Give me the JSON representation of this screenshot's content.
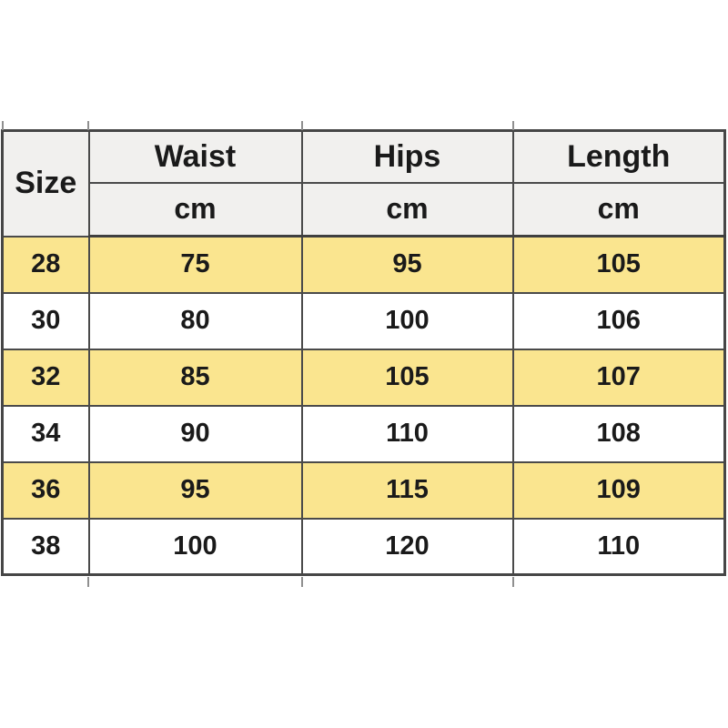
{
  "table": {
    "columns": [
      {
        "id": "size",
        "label": "Size",
        "unit": ""
      },
      {
        "id": "waist",
        "label": "Waist",
        "unit": "cm"
      },
      {
        "id": "hips",
        "label": "Hips",
        "unit": "cm"
      },
      {
        "id": "length",
        "label": "Length",
        "unit": "cm"
      }
    ],
    "rows": [
      {
        "size": "28",
        "waist": "75",
        "hips": "95",
        "length": "105",
        "highlighted": true
      },
      {
        "size": "30",
        "waist": "80",
        "hips": "100",
        "length": "106",
        "highlighted": false
      },
      {
        "size": "32",
        "waist": "85",
        "hips": "105",
        "length": "107",
        "highlighted": true
      },
      {
        "size": "34",
        "waist": "90",
        "hips": "110",
        "length": "108",
        "highlighted": false
      },
      {
        "size": "36",
        "waist": "95",
        "hips": "115",
        "length": "109",
        "highlighted": true
      },
      {
        "size": "38",
        "waist": "100",
        "hips": "120",
        "length": "110",
        "highlighted": false
      }
    ],
    "colors": {
      "highlight_row": "#FAE58F",
      "header_bg": "#F1F0EE",
      "border": "#4A4A4A",
      "text": "#1A1A1A",
      "row_bg": "#FFFFFF",
      "page_bg": "#FFFFFF"
    }
  },
  "chart_data": {
    "type": "table",
    "columns": [
      "Size",
      "Waist (cm)",
      "Hips (cm)",
      "Length (cm)"
    ],
    "rows": [
      [
        28,
        75,
        95,
        105
      ],
      [
        30,
        80,
        100,
        106
      ],
      [
        32,
        85,
        105,
        107
      ],
      [
        34,
        90,
        110,
        108
      ],
      [
        36,
        95,
        115,
        109
      ],
      [
        38,
        100,
        120,
        110
      ]
    ],
    "highlighted_row_indices": [
      0,
      2,
      4
    ],
    "layout": {
      "header_rows": 2,
      "grid": true,
      "highlight_pattern": "alternating-starting-first-data-row"
    }
  }
}
